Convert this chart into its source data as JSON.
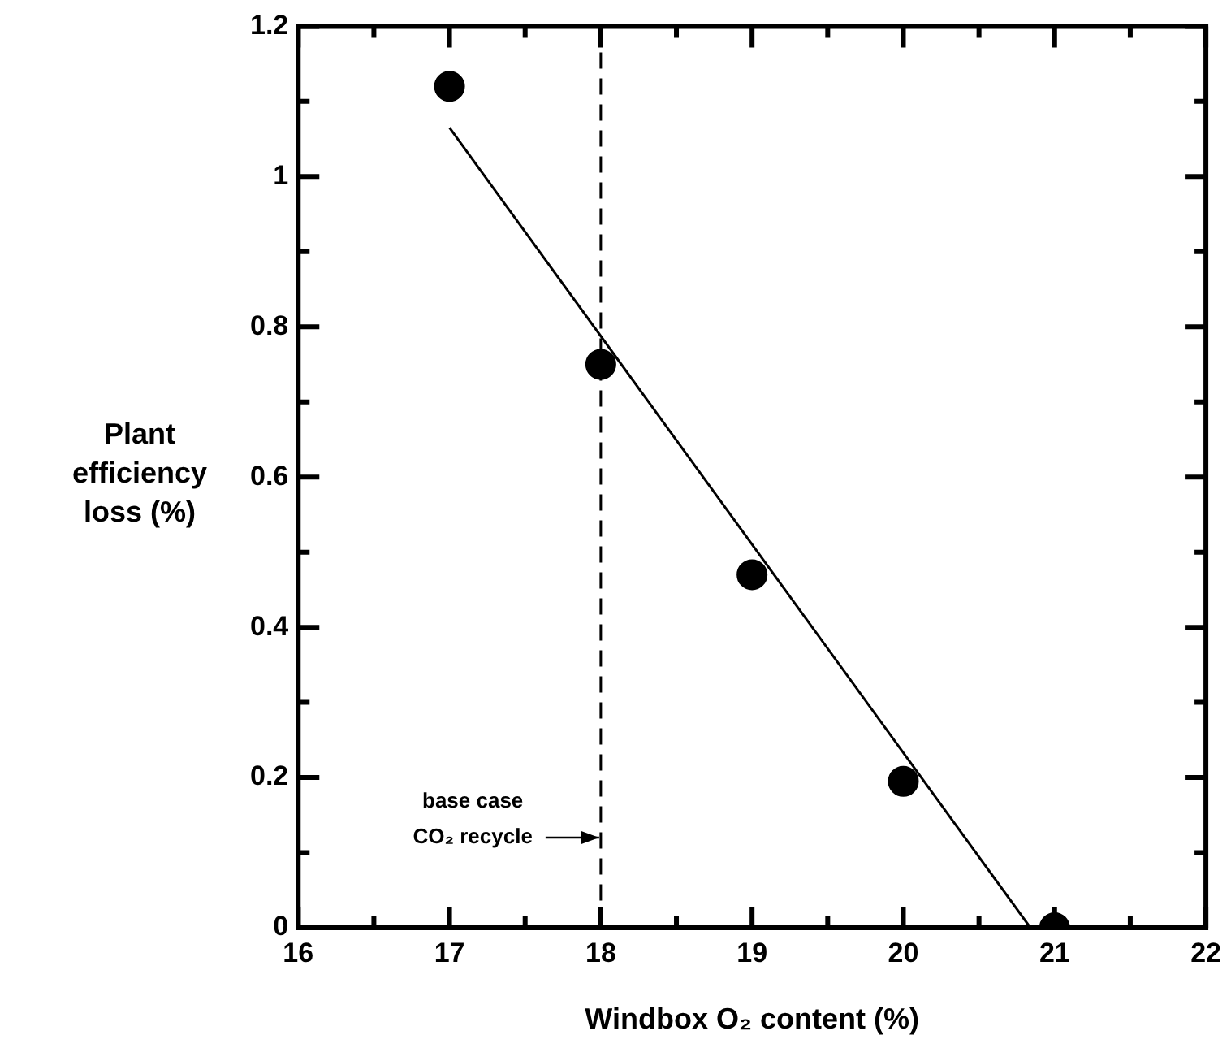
{
  "chart_data": {
    "type": "scatter",
    "xlabel": "Windbox O₂ content (%)",
    "ylabel": "Plant efficiency loss (%)",
    "xlim": [
      16,
      22
    ],
    "ylim": [
      0,
      1.2
    ],
    "xticks": [
      16,
      {
        "value": 16.5,
        "label": null
      },
      17,
      {
        "value": 17.5,
        "label": null
      },
      18,
      {
        "value": 18.5,
        "label": null
      },
      19,
      {
        "value": 19.5,
        "label": null
      },
      20,
      {
        "value": 20.5,
        "label": null
      },
      21,
      {
        "value": 21.5,
        "label": null
      },
      22
    ],
    "yticks": [
      0,
      {
        "value": 0.1,
        "label": null
      },
      0.2,
      {
        "value": 0.3,
        "label": null
      },
      0.4,
      {
        "value": 0.5,
        "label": null
      },
      0.6,
      {
        "value": 0.7,
        "label": null
      },
      0.8,
      {
        "value": 0.9,
        "label": null
      },
      1,
      {
        "value": 1.1,
        "label": null
      },
      1.2
    ],
    "grid": false,
    "legend": false,
    "marker": "circle",
    "series": [
      {
        "color": "#000000",
        "x": [
          17,
          18,
          19,
          20,
          21
        ],
        "values": [
          1.12,
          0.75,
          0.47,
          0.195,
          0
        ]
      },
      {
        "type": "line",
        "color": "#000000",
        "marker": "none",
        "line_style": "solid",
        "x": [
          17,
          20.84
        ],
        "values": [
          1.065,
          0
        ]
      }
    ],
    "ref_lines": [
      {
        "axis": "x",
        "value": 18,
        "color": "#000000",
        "line_style": "dashed"
      }
    ],
    "annotations": [
      {
        "text": "base case CO₂ recycle",
        "x": 18,
        "y": 0.12
      }
    ]
  }
}
